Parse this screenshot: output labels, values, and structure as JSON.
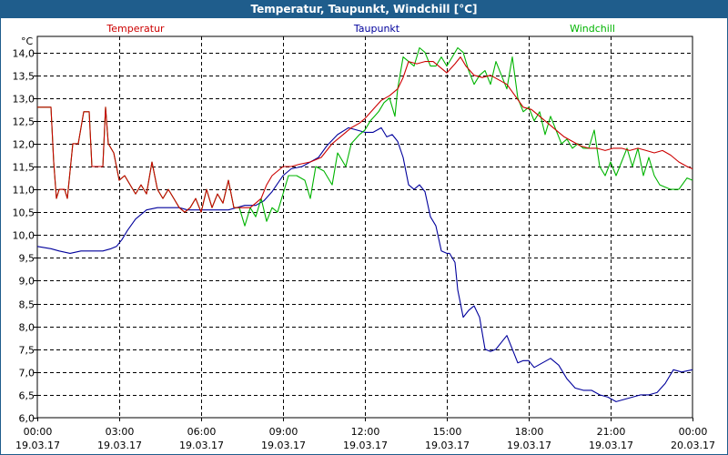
{
  "window": {
    "title": "Temperatur, Taupunkt, Windchill [°C]"
  },
  "chart_data": {
    "type": "line",
    "title": "Temperatur, Taupunkt, Windchill [°C]",
    "ylabel": "°C",
    "ylim": [
      6.0,
      14.35
    ],
    "yticks": [
      6.0,
      6.5,
      7.0,
      7.5,
      8.0,
      8.5,
      9.0,
      9.5,
      10.0,
      10.5,
      11.0,
      11.5,
      12.0,
      12.5,
      13.0,
      13.5,
      14.0
    ],
    "ytick_labels": [
      "6,0",
      "6,5",
      "7,0",
      "7,5",
      "8,0",
      "8,5",
      "9,0",
      "9,5",
      "10,0",
      "10,5",
      "11,0",
      "11,5",
      "12,0",
      "12,5",
      "13,0",
      "13,5",
      "14,0"
    ],
    "xlim": [
      0,
      24
    ],
    "xticks": [
      {
        "x": 0,
        "time": "00:00",
        "date": "19.03.17"
      },
      {
        "x": 3,
        "time": "03:00",
        "date": "19.03.17"
      },
      {
        "x": 6,
        "time": "06:00",
        "date": "19.03.17"
      },
      {
        "x": 9,
        "time": "09:00",
        "date": "19.03.17"
      },
      {
        "x": 12,
        "time": "12:00",
        "date": "19.03.17"
      },
      {
        "x": 15,
        "time": "15:00",
        "date": "19.03.17"
      },
      {
        "x": 18,
        "time": "18:00",
        "date": "19.03.17"
      },
      {
        "x": 21,
        "time": "21:00",
        "date": "19.03.17"
      },
      {
        "x": 24,
        "time": "00:00",
        "date": "20.03.17"
      }
    ],
    "grid": true,
    "legend_placement": "top",
    "series": [
      {
        "name": "Temperatur",
        "color": "#cc0000",
        "points": [
          [
            0,
            12.8
          ],
          [
            0.5,
            12.8
          ],
          [
            0.6,
            11.6
          ],
          [
            0.7,
            10.8
          ],
          [
            0.8,
            11.0
          ],
          [
            1.0,
            11.0
          ],
          [
            1.1,
            10.8
          ],
          [
            1.3,
            12.0
          ],
          [
            1.5,
            12.0
          ],
          [
            1.7,
            12.7
          ],
          [
            1.9,
            12.7
          ],
          [
            2.0,
            11.5
          ],
          [
            2.2,
            11.5
          ],
          [
            2.4,
            11.5
          ],
          [
            2.5,
            12.8
          ],
          [
            2.6,
            12.0
          ],
          [
            2.8,
            11.8
          ],
          [
            3.0,
            11.2
          ],
          [
            3.2,
            11.3
          ],
          [
            3.4,
            11.1
          ],
          [
            3.6,
            10.9
          ],
          [
            3.8,
            11.1
          ],
          [
            4.0,
            10.9
          ],
          [
            4.2,
            11.6
          ],
          [
            4.4,
            11.0
          ],
          [
            4.6,
            10.8
          ],
          [
            4.8,
            11.0
          ],
          [
            5.0,
            10.8
          ],
          [
            5.2,
            10.6
          ],
          [
            5.4,
            10.5
          ],
          [
            5.6,
            10.6
          ],
          [
            5.8,
            10.8
          ],
          [
            6.0,
            10.5
          ],
          [
            6.2,
            11.0
          ],
          [
            6.4,
            10.6
          ],
          [
            6.6,
            10.9
          ],
          [
            6.8,
            10.7
          ],
          [
            7.0,
            11.2
          ],
          [
            7.2,
            10.6
          ],
          [
            7.4,
            10.6
          ],
          [
            7.6,
            10.6
          ],
          [
            7.8,
            10.6
          ],
          [
            8.0,
            10.7
          ],
          [
            8.2,
            10.8
          ],
          [
            8.4,
            11.1
          ],
          [
            8.6,
            11.3
          ],
          [
            8.8,
            11.4
          ],
          [
            9.0,
            11.5
          ],
          [
            9.3,
            11.5
          ],
          [
            9.6,
            11.55
          ],
          [
            10.0,
            11.6
          ],
          [
            10.4,
            11.7
          ],
          [
            10.8,
            12.0
          ],
          [
            11.2,
            12.2
          ],
          [
            11.5,
            12.35
          ],
          [
            11.8,
            12.45
          ],
          [
            12.0,
            12.55
          ],
          [
            12.3,
            12.75
          ],
          [
            12.6,
            12.95
          ],
          [
            12.9,
            13.05
          ],
          [
            13.2,
            13.2
          ],
          [
            13.4,
            13.45
          ],
          [
            13.6,
            13.8
          ],
          [
            13.9,
            13.75
          ],
          [
            14.2,
            13.8
          ],
          [
            14.5,
            13.8
          ],
          [
            14.8,
            13.65
          ],
          [
            15.0,
            13.55
          ],
          [
            15.3,
            13.75
          ],
          [
            15.5,
            13.9
          ],
          [
            15.7,
            13.7
          ],
          [
            16.0,
            13.5
          ],
          [
            16.3,
            13.45
          ],
          [
            16.6,
            13.5
          ],
          [
            16.9,
            13.4
          ],
          [
            17.2,
            13.3
          ],
          [
            17.5,
            13.05
          ],
          [
            17.8,
            12.8
          ],
          [
            18.1,
            12.75
          ],
          [
            18.4,
            12.6
          ],
          [
            18.7,
            12.45
          ],
          [
            19.0,
            12.3
          ],
          [
            19.3,
            12.15
          ],
          [
            19.6,
            12.05
          ],
          [
            19.9,
            11.95
          ],
          [
            20.2,
            11.9
          ],
          [
            20.5,
            11.9
          ],
          [
            20.8,
            11.85
          ],
          [
            21.1,
            11.9
          ],
          [
            21.4,
            11.9
          ],
          [
            21.7,
            11.85
          ],
          [
            22.0,
            11.9
          ],
          [
            22.3,
            11.85
          ],
          [
            22.6,
            11.8
          ],
          [
            22.9,
            11.85
          ],
          [
            23.2,
            11.75
          ],
          [
            23.5,
            11.6
          ],
          [
            23.8,
            11.5
          ],
          [
            24.0,
            11.45
          ]
        ]
      },
      {
        "name": "Taupunkt",
        "color": "#00009c",
        "points": [
          [
            0,
            9.75
          ],
          [
            0.5,
            9.7
          ],
          [
            0.8,
            9.65
          ],
          [
            1.2,
            9.6
          ],
          [
            1.6,
            9.65
          ],
          [
            2.0,
            9.65
          ],
          [
            2.4,
            9.65
          ],
          [
            2.7,
            9.7
          ],
          [
            2.9,
            9.75
          ],
          [
            3.1,
            9.9
          ],
          [
            3.3,
            10.1
          ],
          [
            3.6,
            10.35
          ],
          [
            4.0,
            10.55
          ],
          [
            4.4,
            10.6
          ],
          [
            4.8,
            10.6
          ],
          [
            5.2,
            10.6
          ],
          [
            5.5,
            10.55
          ],
          [
            6.0,
            10.55
          ],
          [
            6.5,
            10.55
          ],
          [
            7.0,
            10.55
          ],
          [
            7.3,
            10.6
          ],
          [
            7.6,
            10.65
          ],
          [
            8.0,
            10.65
          ],
          [
            8.3,
            10.75
          ],
          [
            8.6,
            10.95
          ],
          [
            9.0,
            11.3
          ],
          [
            9.3,
            11.45
          ],
          [
            9.7,
            11.5
          ],
          [
            10.0,
            11.6
          ],
          [
            10.3,
            11.7
          ],
          [
            10.6,
            11.95
          ],
          [
            11.0,
            12.2
          ],
          [
            11.4,
            12.35
          ],
          [
            11.7,
            12.3
          ],
          [
            12.0,
            12.25
          ],
          [
            12.3,
            12.25
          ],
          [
            12.6,
            12.35
          ],
          [
            12.8,
            12.15
          ],
          [
            13.0,
            12.2
          ],
          [
            13.2,
            12.05
          ],
          [
            13.4,
            11.7
          ],
          [
            13.6,
            11.1
          ],
          [
            13.8,
            11.0
          ],
          [
            14.0,
            11.1
          ],
          [
            14.2,
            10.95
          ],
          [
            14.4,
            10.4
          ],
          [
            14.6,
            10.2
          ],
          [
            14.8,
            9.65
          ],
          [
            15.0,
            9.6
          ],
          [
            15.1,
            9.6
          ],
          [
            15.3,
            9.4
          ],
          [
            15.4,
            8.8
          ],
          [
            15.6,
            8.2
          ],
          [
            15.8,
            8.35
          ],
          [
            16.0,
            8.45
          ],
          [
            16.2,
            8.2
          ],
          [
            16.4,
            7.5
          ],
          [
            16.6,
            7.45
          ],
          [
            16.8,
            7.5
          ],
          [
            17.0,
            7.65
          ],
          [
            17.2,
            7.8
          ],
          [
            17.4,
            7.5
          ],
          [
            17.6,
            7.2
          ],
          [
            17.8,
            7.25
          ],
          [
            18.0,
            7.25
          ],
          [
            18.2,
            7.1
          ],
          [
            18.5,
            7.2
          ],
          [
            18.8,
            7.3
          ],
          [
            19.1,
            7.15
          ],
          [
            19.4,
            6.85
          ],
          [
            19.7,
            6.65
          ],
          [
            20.0,
            6.6
          ],
          [
            20.3,
            6.6
          ],
          [
            20.6,
            6.5
          ],
          [
            20.9,
            6.45
          ],
          [
            21.2,
            6.35
          ],
          [
            21.5,
            6.4
          ],
          [
            21.8,
            6.45
          ],
          [
            22.1,
            6.5
          ],
          [
            22.4,
            6.5
          ],
          [
            22.7,
            6.55
          ],
          [
            23.0,
            6.75
          ],
          [
            23.3,
            7.05
          ],
          [
            23.6,
            7.0
          ],
          [
            24.0,
            7.05
          ]
        ]
      },
      {
        "name": "Windchill",
        "color": "#00b400",
        "points": [
          [
            0,
            12.8
          ],
          [
            0.5,
            12.8
          ],
          [
            0.6,
            11.6
          ],
          [
            0.7,
            10.8
          ],
          [
            0.8,
            11.0
          ],
          [
            1.0,
            11.0
          ],
          [
            1.1,
            10.8
          ],
          [
            1.3,
            12.0
          ],
          [
            1.5,
            12.0
          ],
          [
            1.7,
            12.7
          ],
          [
            1.9,
            12.7
          ],
          [
            2.0,
            11.5
          ],
          [
            2.2,
            11.5
          ],
          [
            2.4,
            11.5
          ],
          [
            2.5,
            12.8
          ],
          [
            2.6,
            12.0
          ],
          [
            2.8,
            11.8
          ],
          [
            3.0,
            11.2
          ],
          [
            3.2,
            11.3
          ],
          [
            3.4,
            11.1
          ],
          [
            3.6,
            10.9
          ],
          [
            3.8,
            11.1
          ],
          [
            4.0,
            10.9
          ],
          [
            4.2,
            11.6
          ],
          [
            4.4,
            11.0
          ],
          [
            4.6,
            10.8
          ],
          [
            4.8,
            11.0
          ],
          [
            5.0,
            10.8
          ],
          [
            5.2,
            10.6
          ],
          [
            5.4,
            10.5
          ],
          [
            5.6,
            10.6
          ],
          [
            5.8,
            10.8
          ],
          [
            6.0,
            10.5
          ],
          [
            6.2,
            11.0
          ],
          [
            6.4,
            10.6
          ],
          [
            6.6,
            10.9
          ],
          [
            6.8,
            10.7
          ],
          [
            7.0,
            11.2
          ],
          [
            7.2,
            10.6
          ],
          [
            7.4,
            10.6
          ],
          [
            7.6,
            10.2
          ],
          [
            7.8,
            10.6
          ],
          [
            8.0,
            10.4
          ],
          [
            8.2,
            10.8
          ],
          [
            8.4,
            10.3
          ],
          [
            8.6,
            10.6
          ],
          [
            8.8,
            10.5
          ],
          [
            9.0,
            10.9
          ],
          [
            9.2,
            11.3
          ],
          [
            9.5,
            11.3
          ],
          [
            9.8,
            11.2
          ],
          [
            10.0,
            10.8
          ],
          [
            10.2,
            11.5
          ],
          [
            10.5,
            11.4
          ],
          [
            10.8,
            11.1
          ],
          [
            11.0,
            11.8
          ],
          [
            11.3,
            11.5
          ],
          [
            11.5,
            12.0
          ],
          [
            11.8,
            12.2
          ],
          [
            12.0,
            12.3
          ],
          [
            12.2,
            12.5
          ],
          [
            12.5,
            12.7
          ],
          [
            12.7,
            12.9
          ],
          [
            12.9,
            13.0
          ],
          [
            13.1,
            12.6
          ],
          [
            13.2,
            13.2
          ],
          [
            13.4,
            13.9
          ],
          [
            13.6,
            13.8
          ],
          [
            13.8,
            13.7
          ],
          [
            14.0,
            14.1
          ],
          [
            14.2,
            14.0
          ],
          [
            14.4,
            13.7
          ],
          [
            14.6,
            13.7
          ],
          [
            14.8,
            13.9
          ],
          [
            15.0,
            13.7
          ],
          [
            15.2,
            13.9
          ],
          [
            15.4,
            14.1
          ],
          [
            15.6,
            14.0
          ],
          [
            15.8,
            13.6
          ],
          [
            16.0,
            13.3
          ],
          [
            16.2,
            13.5
          ],
          [
            16.4,
            13.6
          ],
          [
            16.6,
            13.3
          ],
          [
            16.8,
            13.8
          ],
          [
            17.0,
            13.5
          ],
          [
            17.2,
            13.2
          ],
          [
            17.4,
            13.9
          ],
          [
            17.6,
            13.0
          ],
          [
            17.8,
            12.7
          ],
          [
            18.0,
            12.8
          ],
          [
            18.2,
            12.5
          ],
          [
            18.4,
            12.7
          ],
          [
            18.6,
            12.2
          ],
          [
            18.8,
            12.6
          ],
          [
            19.0,
            12.3
          ],
          [
            19.2,
            12.0
          ],
          [
            19.4,
            12.1
          ],
          [
            19.6,
            11.9
          ],
          [
            19.8,
            12.0
          ],
          [
            20.0,
            11.9
          ],
          [
            20.2,
            11.9
          ],
          [
            20.4,
            12.3
          ],
          [
            20.6,
            11.5
          ],
          [
            20.8,
            11.3
          ],
          [
            21.0,
            11.6
          ],
          [
            21.2,
            11.3
          ],
          [
            21.4,
            11.6
          ],
          [
            21.6,
            11.9
          ],
          [
            21.8,
            11.5
          ],
          [
            22.0,
            11.9
          ],
          [
            22.2,
            11.3
          ],
          [
            22.4,
            11.7
          ],
          [
            22.6,
            11.3
          ],
          [
            22.8,
            11.1
          ],
          [
            23.2,
            11.0
          ],
          [
            23.5,
            11.0
          ],
          [
            23.8,
            11.25
          ],
          [
            24.0,
            11.2
          ]
        ]
      }
    ]
  }
}
